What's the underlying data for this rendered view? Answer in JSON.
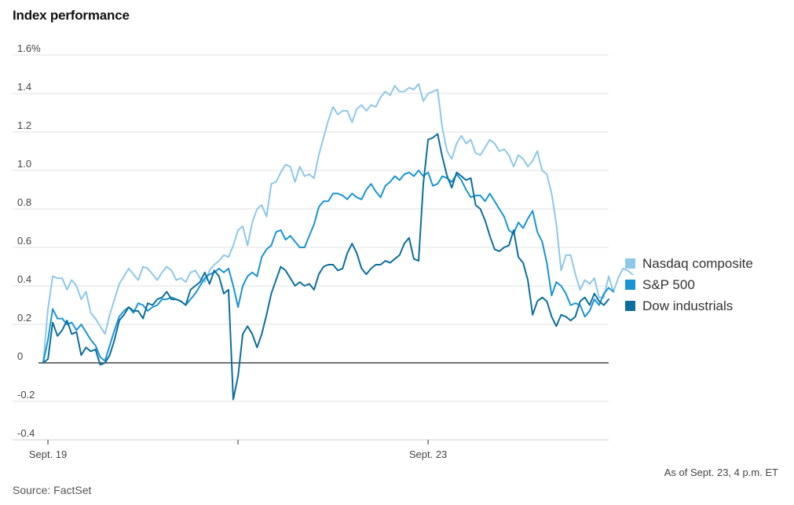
{
  "chart_data": {
    "type": "line",
    "title": "Index performance",
    "note": "As of Sept. 23, 4 p.m. ET",
    "source": "Source: FactSet",
    "ylim": [
      -0.4,
      1.6
    ],
    "xlim": [
      0,
      119
    ],
    "y_ticks": [
      {
        "value": 1.6,
        "label": "1.6%"
      },
      {
        "value": 1.4,
        "label": "1.4"
      },
      {
        "value": 1.2,
        "label": "1.2"
      },
      {
        "value": 1.0,
        "label": "1.0"
      },
      {
        "value": 0.8,
        "label": "0.8"
      },
      {
        "value": 0.6,
        "label": "0.6"
      },
      {
        "value": 0.4,
        "label": "0.4"
      },
      {
        "value": 0.2,
        "label": "0.2"
      },
      {
        "value": 0,
        "label": "0"
      },
      {
        "value": -0.2,
        "label": "-0.2"
      },
      {
        "value": -0.4,
        "label": "-0.4"
      }
    ],
    "x_ticks": [
      {
        "value": 1,
        "label": "Sept. 19"
      },
      {
        "value": 41,
        "label": ""
      },
      {
        "value": 81,
        "label": "Sept. 23"
      }
    ],
    "grid": true,
    "legend_position": "right",
    "series": [
      {
        "name": "Nasdaq composite",
        "color": "#8ec8e8",
        "values": [
          0.0,
          0.28,
          0.45,
          0.44,
          0.44,
          0.38,
          0.43,
          0.4,
          0.33,
          0.37,
          0.26,
          0.23,
          0.19,
          0.15,
          0.25,
          0.33,
          0.41,
          0.45,
          0.49,
          0.46,
          0.43,
          0.5,
          0.49,
          0.46,
          0.43,
          0.47,
          0.5,
          0.48,
          0.43,
          0.44,
          0.42,
          0.47,
          0.48,
          0.44,
          0.42,
          0.48,
          0.51,
          0.53,
          0.56,
          0.55,
          0.61,
          0.69,
          0.71,
          0.61,
          0.73,
          0.8,
          0.82,
          0.76,
          0.93,
          0.94,
          0.99,
          1.03,
          1.02,
          0.94,
          1.02,
          0.97,
          0.98,
          0.96,
          1.08,
          1.17,
          1.26,
          1.33,
          1.29,
          1.31,
          1.31,
          1.25,
          1.32,
          1.34,
          1.31,
          1.34,
          1.33,
          1.38,
          1.41,
          1.39,
          1.44,
          1.41,
          1.41,
          1.43,
          1.42,
          1.45,
          1.36,
          1.4,
          1.41,
          1.42,
          1.22,
          1.1,
          1.06,
          1.14,
          1.18,
          1.14,
          1.16,
          1.09,
          1.08,
          1.12,
          1.16,
          1.14,
          1.1,
          1.11,
          1.08,
          1.02,
          1.08,
          1.06,
          1.02,
          1.05,
          1.1,
          1.0,
          0.98,
          0.88,
          0.72,
          0.48,
          0.56,
          0.56,
          0.46,
          0.38,
          0.43,
          0.41,
          0.44,
          0.34,
          0.34,
          0.45,
          0.37,
          0.44,
          0.49,
          0.48,
          0.46
        ]
      },
      {
        "name": "S&P 500",
        "color": "#1a94d4",
        "values": [
          0.0,
          0.12,
          0.28,
          0.23,
          0.23,
          0.2,
          0.21,
          0.17,
          0.2,
          0.16,
          0.12,
          0.09,
          0.03,
          0.01,
          0.09,
          0.17,
          0.24,
          0.27,
          0.29,
          0.26,
          0.31,
          0.3,
          0.27,
          0.29,
          0.3,
          0.33,
          0.33,
          0.34,
          0.33,
          0.32,
          0.3,
          0.33,
          0.36,
          0.4,
          0.44,
          0.46,
          0.47,
          0.49,
          0.47,
          0.49,
          0.4,
          0.29,
          0.4,
          0.45,
          0.47,
          0.45,
          0.55,
          0.59,
          0.61,
          0.68,
          0.69,
          0.64,
          0.66,
          0.63,
          0.6,
          0.6,
          0.66,
          0.72,
          0.81,
          0.84,
          0.84,
          0.88,
          0.88,
          0.87,
          0.85,
          0.88,
          0.86,
          0.85,
          0.9,
          0.93,
          0.89,
          0.86,
          0.92,
          0.94,
          0.97,
          0.95,
          0.98,
          0.99,
          0.97,
          1.0,
          0.97,
          0.99,
          0.92,
          0.93,
          0.97,
          0.96,
          0.94,
          0.98,
          0.95,
          0.9,
          0.86,
          0.87,
          0.87,
          0.84,
          0.88,
          0.84,
          0.8,
          0.76,
          0.69,
          0.67,
          0.73,
          0.7,
          0.75,
          0.79,
          0.68,
          0.63,
          0.52,
          0.35,
          0.42,
          0.4,
          0.36,
          0.3,
          0.31,
          0.3,
          0.24,
          0.27,
          0.33,
          0.3,
          0.36,
          0.39,
          0.37
        ]
      },
      {
        "name": "Dow industrials",
        "color": "#0c6e9e",
        "values": [
          0.0,
          0.02,
          0.21,
          0.14,
          0.17,
          0.22,
          0.15,
          0.16,
          0.04,
          0.08,
          0.06,
          0.07,
          -0.01,
          0.0,
          0.04,
          0.12,
          0.22,
          0.25,
          0.29,
          0.27,
          0.27,
          0.23,
          0.31,
          0.3,
          0.33,
          0.34,
          0.37,
          0.33,
          0.33,
          0.32,
          0.3,
          0.38,
          0.4,
          0.42,
          0.47,
          0.41,
          0.48,
          0.45,
          0.36,
          0.38,
          -0.19,
          -0.07,
          0.15,
          0.19,
          0.15,
          0.08,
          0.15,
          0.25,
          0.36,
          0.43,
          0.5,
          0.48,
          0.44,
          0.4,
          0.42,
          0.4,
          0.41,
          0.38,
          0.46,
          0.5,
          0.51,
          0.51,
          0.48,
          0.49,
          0.57,
          0.62,
          0.57,
          0.49,
          0.46,
          0.49,
          0.51,
          0.51,
          0.53,
          0.52,
          0.54,
          0.56,
          0.62,
          0.65,
          0.54,
          0.53,
          0.93,
          1.16,
          1.17,
          1.19,
          1.07,
          0.97,
          0.91,
          0.99,
          0.97,
          0.95,
          0.96,
          0.82,
          0.8,
          0.74,
          0.66,
          0.59,
          0.58,
          0.6,
          0.61,
          0.69,
          0.55,
          0.52,
          0.43,
          0.25,
          0.32,
          0.34,
          0.32,
          0.24,
          0.19,
          0.25,
          0.24,
          0.22,
          0.24,
          0.32,
          0.34,
          0.3,
          0.36,
          0.32,
          0.3,
          0.33
        ]
      }
    ]
  }
}
